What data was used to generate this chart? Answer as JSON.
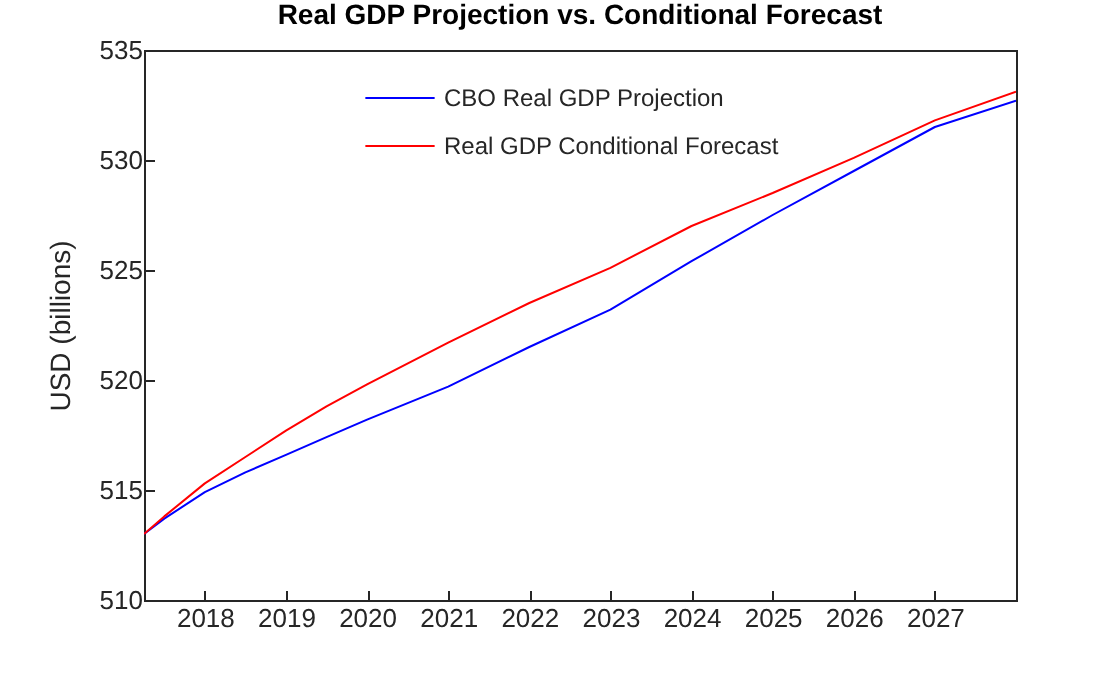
{
  "chart_data": {
    "type": "line",
    "title": "Real GDP Projection vs. Conditional Forecast",
    "ylabel": "USD (billions)",
    "x": [
      2017.25,
      2017.5,
      2018,
      2018.5,
      2019,
      2019.5,
      2020,
      2021,
      2022,
      2023,
      2024,
      2025,
      2026,
      2027,
      2028
    ],
    "series": [
      {
        "name": "CBO Real GDP Projection",
        "color": "#0000ff",
        "values": [
          513.0,
          513.7,
          514.9,
          515.8,
          516.6,
          517.4,
          518.2,
          519.7,
          521.5,
          523.2,
          525.4,
          527.5,
          529.5,
          531.5,
          532.7
        ]
      },
      {
        "name": "Real GDP Conditional Forecast",
        "color": "#ff0000",
        "values": [
          513.0,
          513.8,
          515.3,
          516.5,
          517.7,
          518.8,
          519.8,
          521.7,
          523.5,
          525.1,
          527.0,
          528.5,
          530.1,
          531.8,
          533.1
        ]
      }
    ],
    "xlim": [
      2017.25,
      2028
    ],
    "xticks": [
      2018,
      2019,
      2020,
      2021,
      2022,
      2023,
      2024,
      2025,
      2026,
      2027
    ],
    "ylim": [
      510,
      535
    ],
    "yticks": [
      510,
      515,
      520,
      525,
      530,
      535
    ],
    "grid": false,
    "legend": "top",
    "marker": "none",
    "line_style": "solid"
  }
}
